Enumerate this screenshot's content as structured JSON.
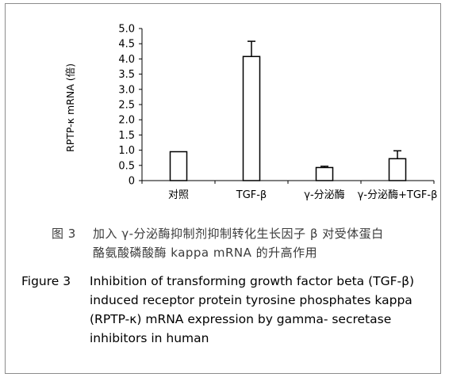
{
  "chart_data": {
    "type": "bar",
    "ylabel": "RPTP-κ mRNA (倍)",
    "categories": [
      "对照",
      "TGF-β",
      "γ-分泌酶",
      "γ-分泌酶+TGF-β"
    ],
    "values": [
      0.95,
      4.08,
      0.43,
      0.72
    ],
    "errors": [
      null,
      0.5,
      0.04,
      0.26
    ],
    "ylim": [
      0,
      5.0
    ],
    "yticks": [
      "0",
      "0.5",
      "1.0",
      "1.5",
      "2.0",
      "2.5",
      "3.0",
      "3.5",
      "4.0",
      "4.5",
      "5.0"
    ],
    "grid": false,
    "bar_fill": "#ffffff",
    "bar_stroke": "#000000"
  },
  "caption_zh": {
    "label": "图 3",
    "line1": "加入 γ-分泌酶抑制剂抑制转化生长因子 β 对受体蛋白",
    "line2": "酪氨酸磷酸酶 kappa    mRNA 的升高作用"
  },
  "caption_en": {
    "label": "Figure 3",
    "line1": "Inhibition of transforming growth factor beta (TGF-β)",
    "line2": "induced receptor protein tyrosine phosphates kappa",
    "line3": "(RPTP-κ) mRNA expression by gamma- secretase",
    "line4": "inhibitors in human"
  }
}
